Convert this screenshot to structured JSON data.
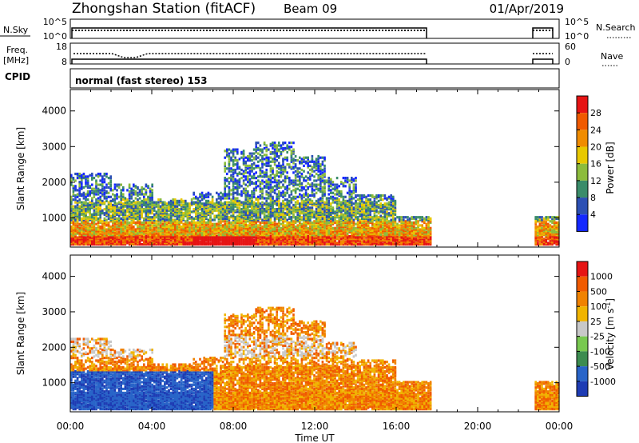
{
  "header": {
    "station": "Zhongshan Station (fitACF)",
    "beam": "Beam 09",
    "date": "01/Apr/2019"
  },
  "status_panels": {
    "nsky_label": "N.Sky",
    "nsky_ticks": [
      "10^5",
      "10^0"
    ],
    "nsearch_label": "N.Search",
    "nsearch_ticks": [
      "10^5",
      "10^0"
    ],
    "freq_label_1": "Freq.",
    "freq_label_2": "[MHz]",
    "freq_ticks": [
      "18",
      "8"
    ],
    "nave_label": "Nave",
    "nave_ticks": [
      "60",
      "0"
    ],
    "cpid_label": "CPID",
    "cpid_text": "normal (fast stereo) 153"
  },
  "chart_data": [
    {
      "type": "heatmap",
      "name": "power",
      "ylabel": "Slant Range [km]",
      "xlabel": "Time UT",
      "x_ticks": [
        "00:00",
        "04:00",
        "08:00",
        "12:00",
        "16:00",
        "20:00",
        "00:00"
      ],
      "x_range_hours": [
        0,
        24
      ],
      "y_ticks": [
        1000,
        2000,
        3000,
        4000
      ],
      "y_range_km": [
        180,
        4600
      ],
      "colorbar_label": "Power [dB]",
      "colorbar_ticks": [
        4,
        8,
        12,
        16,
        20,
        24,
        28
      ],
      "colorbar_colors": [
        "#1428ff",
        "#2c50b4",
        "#3a8c6a",
        "#8cbc3c",
        "#e8c800",
        "#f08c00",
        "#f05a00",
        "#e61414"
      ],
      "data_coverage_hours": [
        [
          0.0,
          17.7
        ],
        [
          22.8,
          24.0
        ]
      ]
    },
    {
      "type": "heatmap",
      "name": "velocity",
      "ylabel": "Slant Range [km]",
      "xlabel": "Time UT",
      "x_ticks": [
        "00:00",
        "04:00",
        "08:00",
        "12:00",
        "16:00",
        "20:00",
        "00:00"
      ],
      "x_range_hours": [
        0,
        24
      ],
      "y_ticks": [
        1000,
        2000,
        3000,
        4000
      ],
      "y_range_km": [
        180,
        4600
      ],
      "colorbar_label": "Velocity [m s",
      "colorbar_label_sup": "-1",
      "colorbar_label_end": "]",
      "colorbar_ticks": [
        "1000",
        "500",
        "100",
        "25",
        "-25",
        "-100",
        "-500",
        "-1000"
      ],
      "colorbar_colors": [
        "#1e3cb4",
        "#2864c8",
        "#3c8c50",
        "#78c850",
        "#c8c8c8",
        "#f0b400",
        "#f08200",
        "#f05a00",
        "#e61414"
      ],
      "data_coverage_hours": [
        [
          0.0,
          17.7
        ],
        [
          22.8,
          24.0
        ]
      ]
    }
  ],
  "xaxis_title": "Time UT"
}
